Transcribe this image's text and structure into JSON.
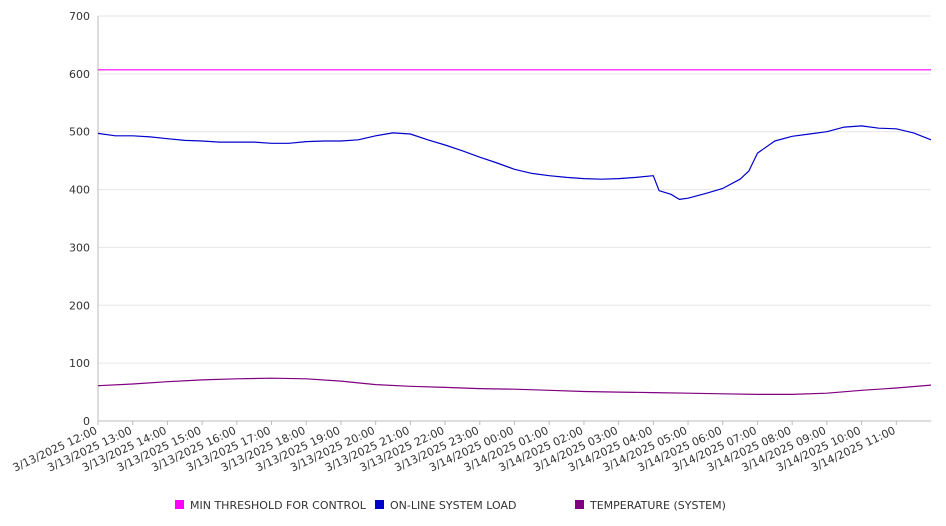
{
  "chart_data": {
    "type": "line",
    "title": "",
    "xlabel": "",
    "ylabel": "",
    "ylim": [
      0,
      700
    ],
    "y_ticks": [
      "0",
      "100",
      "200",
      "300",
      "400",
      "500",
      "600",
      "700"
    ],
    "x_tick_labels": [
      "3/13/2025 12:00",
      "3/13/2025 13:00",
      "3/13/2025 14:00",
      "3/13/2025 15:00",
      "3/13/2025 16:00",
      "3/13/2025 17:00",
      "3/13/2025 18:00",
      "3/13/2025 19:00",
      "3/13/2025 20:00",
      "3/13/2025 21:00",
      "3/13/2025 22:00",
      "3/13/2025 23:00",
      "3/14/2025 00:00",
      "3/14/2025 01:00",
      "3/14/2025 02:00",
      "3/14/2025 03:00",
      "3/14/2025 04:00",
      "3/14/2025 05:00",
      "3/14/2025 06:00",
      "3/14/2025 07:00",
      "3/14/2025 08:00",
      "3/14/2025 09:00",
      "3/14/2025 10:00",
      "3/14/2025 11:00"
    ],
    "x_range": [
      "3/13/2025 12:00",
      "3/14/2025 12:00"
    ],
    "grid": true,
    "legend_position": "bottom",
    "series": [
      {
        "name": "MIN THRESHOLD FOR CONTROL",
        "color": "#ff00ff",
        "points": [
          [
            "3/13/2025 12:00",
            607
          ],
          [
            "3/14/2025 12:00",
            607
          ]
        ]
      },
      {
        "name": "ON-LINE SYSTEM LOAD",
        "color": "#0000cc",
        "points": [
          [
            "3/13/2025 12:00",
            497
          ],
          [
            "3/13/2025 12:30",
            493
          ],
          [
            "3/13/2025 13:00",
            493
          ],
          [
            "3/13/2025 13:30",
            491
          ],
          [
            "3/13/2025 14:00",
            488
          ],
          [
            "3/13/2025 14:30",
            485
          ],
          [
            "3/13/2025 15:00",
            484
          ],
          [
            "3/13/2025 15:30",
            482
          ],
          [
            "3/13/2025 16:00",
            482
          ],
          [
            "3/13/2025 16:30",
            482
          ],
          [
            "3/13/2025 17:00",
            480
          ],
          [
            "3/13/2025 17:30",
            480
          ],
          [
            "3/13/2025 18:00",
            483
          ],
          [
            "3/13/2025 18:30",
            484
          ],
          [
            "3/13/2025 19:00",
            484
          ],
          [
            "3/13/2025 19:30",
            486
          ],
          [
            "3/13/2025 20:00",
            493
          ],
          [
            "3/13/2025 20:30",
            498
          ],
          [
            "3/13/2025 21:00",
            496
          ],
          [
            "3/13/2025 21:30",
            486
          ],
          [
            "3/13/2025 22:00",
            477
          ],
          [
            "3/13/2025 22:30",
            467
          ],
          [
            "3/13/2025 23:00",
            456
          ],
          [
            "3/13/2025 23:30",
            446
          ],
          [
            "3/14/2025 00:00",
            435
          ],
          [
            "3/14/2025 00:30",
            428
          ],
          [
            "3/14/2025 01:00",
            424
          ],
          [
            "3/14/2025 01:30",
            421
          ],
          [
            "3/14/2025 02:00",
            419
          ],
          [
            "3/14/2025 02:30",
            418
          ],
          [
            "3/14/2025 03:00",
            419
          ],
          [
            "3/14/2025 03:30",
            421
          ],
          [
            "3/14/2025 04:00",
            424
          ],
          [
            "3/14/2025 04:10",
            398
          ],
          [
            "3/14/2025 04:30",
            392
          ],
          [
            "3/14/2025 04:45",
            383
          ],
          [
            "3/14/2025 05:00",
            385
          ],
          [
            "3/14/2025 05:30",
            393
          ],
          [
            "3/14/2025 06:00",
            402
          ],
          [
            "3/14/2025 06:30",
            418
          ],
          [
            "3/14/2025 06:45",
            432
          ],
          [
            "3/14/2025 07:00",
            463
          ],
          [
            "3/14/2025 07:30",
            484
          ],
          [
            "3/14/2025 08:00",
            492
          ],
          [
            "3/14/2025 08:30",
            496
          ],
          [
            "3/14/2025 09:00",
            500
          ],
          [
            "3/14/2025 09:30",
            508
          ],
          [
            "3/14/2025 10:00",
            510
          ],
          [
            "3/14/2025 10:30",
            506
          ],
          [
            "3/14/2025 11:00",
            505
          ],
          [
            "3/14/2025 11:30",
            498
          ],
          [
            "3/14/2025 12:00",
            486
          ]
        ]
      },
      {
        "name": "TEMPERATURE (SYSTEM)",
        "color": "#800080",
        "points": [
          [
            "3/13/2025 12:00",
            61
          ],
          [
            "3/13/2025 13:00",
            64
          ],
          [
            "3/13/2025 14:00",
            68
          ],
          [
            "3/13/2025 15:00",
            71
          ],
          [
            "3/13/2025 16:00",
            73
          ],
          [
            "3/13/2025 17:00",
            74
          ],
          [
            "3/13/2025 18:00",
            73
          ],
          [
            "3/13/2025 19:00",
            69
          ],
          [
            "3/13/2025 20:00",
            63
          ],
          [
            "3/13/2025 21:00",
            60
          ],
          [
            "3/13/2025 22:00",
            58
          ],
          [
            "3/13/2025 23:00",
            56
          ],
          [
            "3/14/2025 00:00",
            55
          ],
          [
            "3/14/2025 01:00",
            53
          ],
          [
            "3/14/2025 02:00",
            51
          ],
          [
            "3/14/2025 03:00",
            50
          ],
          [
            "3/14/2025 04:00",
            49
          ],
          [
            "3/14/2025 05:00",
            48
          ],
          [
            "3/14/2025 06:00",
            47
          ],
          [
            "3/14/2025 07:00",
            46
          ],
          [
            "3/14/2025 08:00",
            46
          ],
          [
            "3/14/2025 09:00",
            48
          ],
          [
            "3/14/2025 10:00",
            53
          ],
          [
            "3/14/2025 11:00",
            57
          ],
          [
            "3/14/2025 12:00",
            62
          ]
        ]
      }
    ]
  }
}
